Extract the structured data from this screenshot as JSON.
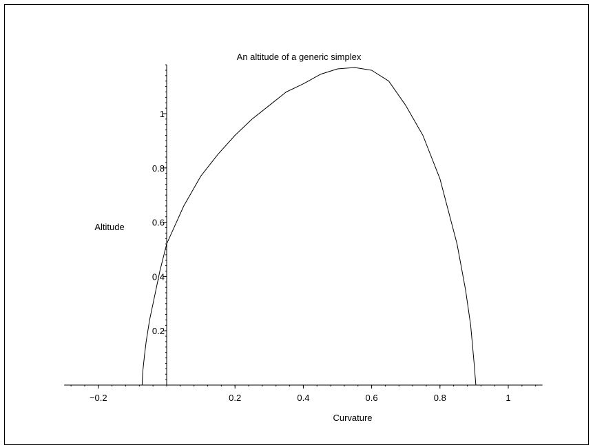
{
  "chart_data": {
    "type": "line",
    "title": "An altitude of a generic simplex",
    "xlabel": "Curvature",
    "ylabel": "Altitude",
    "xlim": [
      -0.3,
      1.1
    ],
    "ylim": [
      0,
      1.18
    ],
    "x_ticks": [
      -0.2,
      0.2,
      0.4,
      0.6,
      0.8,
      1
    ],
    "x_tick_labels": [
      "−0.2",
      "0.2",
      "0.4",
      "0.6",
      "0.8",
      "1"
    ],
    "y_ticks": [
      0.2,
      0.4,
      0.6,
      0.8,
      1
    ],
    "y_tick_labels": [
      "0.2",
      "0.4",
      "0.6",
      "0.8",
      "1"
    ],
    "grid": false,
    "line_color": "#000000",
    "series": [
      {
        "x": [
          -0.072,
          -0.07,
          -0.065,
          -0.06,
          -0.05,
          -0.04,
          -0.02,
          0,
          0.05,
          0.1,
          0.15,
          0.2,
          0.25,
          0.3,
          0.35,
          0.4,
          0.45,
          0.5,
          0.55,
          0.6,
          0.65,
          0.7,
          0.75,
          0.8,
          0.85,
          0.875,
          0.89,
          0.9,
          0.905
        ],
        "y": [
          0,
          0.05,
          0.11,
          0.16,
          0.24,
          0.3,
          0.42,
          0.52,
          0.66,
          0.77,
          0.85,
          0.92,
          0.98,
          1.03,
          1.08,
          1.11,
          1.145,
          1.165,
          1.17,
          1.16,
          1.12,
          1.03,
          0.92,
          0.76,
          0.52,
          0.35,
          0.22,
          0.08,
          0
        ]
      }
    ]
  }
}
